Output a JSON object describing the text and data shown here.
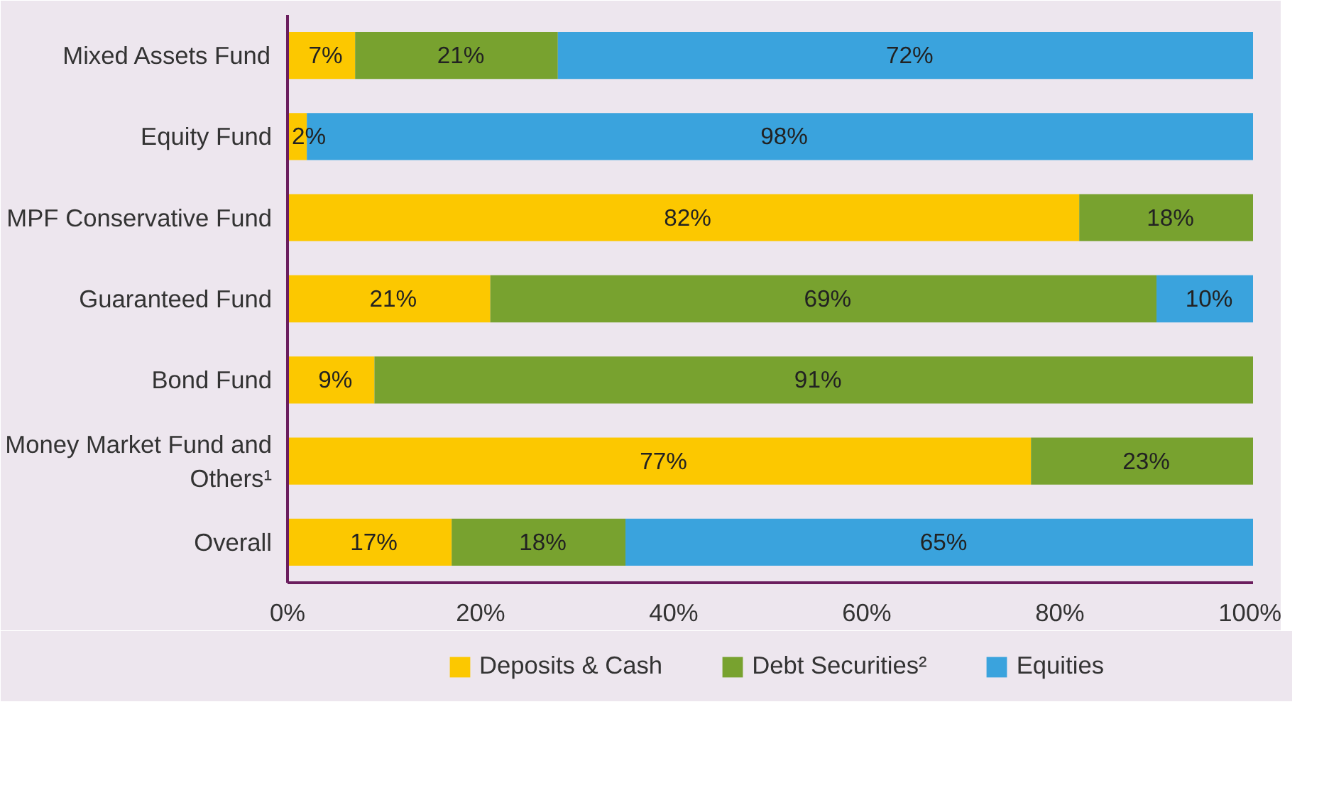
{
  "chart_data": {
    "type": "bar",
    "orientation": "horizontal",
    "stacked": true,
    "categories": [
      "Mixed Assets Fund",
      "Equity Fund",
      "MPF Conservative Fund",
      "Guaranteed Fund",
      "Bond Fund",
      "Money Market Fund and Others¹",
      "Overall"
    ],
    "series": [
      {
        "name": "Deposits & Cash",
        "color": "#fcc800",
        "values": [
          7,
          2,
          82,
          21,
          9,
          77,
          17
        ],
        "value_labels": [
          "7%",
          "2%",
          "82%",
          "21%",
          "9%",
          "77%",
          "17%"
        ]
      },
      {
        "name": "Debt Securities²",
        "color": "#78a22f",
        "values": [
          21,
          null,
          18,
          69,
          91,
          23,
          18
        ],
        "value_labels": [
          "21%",
          null,
          "18%",
          "69%",
          "91%",
          "23%",
          "18%"
        ]
      },
      {
        "name": "Equities",
        "color": "#3aa3dd",
        "values": [
          72,
          98,
          null,
          10,
          null,
          null,
          65
        ],
        "value_labels": [
          "72%",
          "98%",
          null,
          "10%",
          null,
          null,
          "65%"
        ]
      }
    ],
    "xlim": [
      0,
      100
    ],
    "xticks": [
      {
        "value": 0,
        "label": "0%"
      },
      {
        "value": 20,
        "label": "20%"
      },
      {
        "value": 40,
        "label": "40%"
      },
      {
        "value": 60,
        "label": "60%"
      },
      {
        "value": 80,
        "label": "80%"
      },
      {
        "value": 100,
        "label": "100%"
      }
    ],
    "grid": false,
    "legend": "bottom"
  }
}
